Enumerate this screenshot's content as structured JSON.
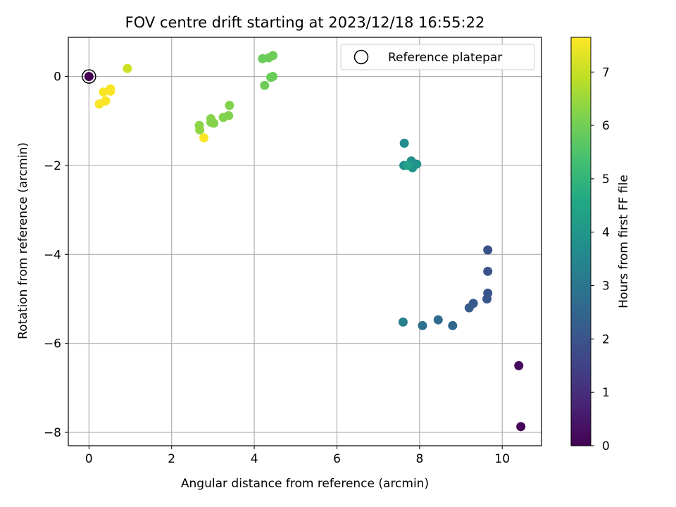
{
  "chart_data": {
    "type": "scatter",
    "title": "FOV centre drift starting at 2023/12/18 16:55:22",
    "xlabel": "Angular distance from reference (arcmin)",
    "ylabel": "Rotation from reference (arcmin)",
    "xlim": [
      -0.5,
      10.95
    ],
    "ylim": [
      -8.3,
      0.88
    ],
    "xticks": [
      0,
      2,
      4,
      6,
      8,
      10
    ],
    "yticks": [
      0,
      -2,
      -4,
      -6,
      -8
    ],
    "xtick_labels": [
      "0",
      "2",
      "4",
      "6",
      "8",
      "10"
    ],
    "ytick_labels": [
      "0",
      "−2",
      "−4",
      "−6",
      "−8"
    ],
    "grid": true,
    "legend": {
      "position": "top-right",
      "label": "Reference platepar"
    },
    "reference_point": {
      "x": 0,
      "y": 0
    },
    "colorbar": {
      "label": "Hours from first FF file",
      "range": [
        0,
        7.65
      ],
      "colormap": "viridis",
      "ticks": [
        0,
        1,
        2,
        3,
        4,
        5,
        6,
        7
      ],
      "tick_labels": [
        "0",
        "1",
        "2",
        "3",
        "4",
        "5",
        "6",
        "7"
      ]
    },
    "points": [
      {
        "x": 0.0,
        "y": 0.0,
        "c": 0.0
      },
      {
        "x": 10.45,
        "y": -7.87,
        "c": 0.05
      },
      {
        "x": 10.4,
        "y": -6.5,
        "c": 0.2
      },
      {
        "x": 9.65,
        "y": -3.9,
        "c": 1.9
      },
      {
        "x": 9.65,
        "y": -4.38,
        "c": 1.95
      },
      {
        "x": 9.65,
        "y": -4.87,
        "c": 2.0
      },
      {
        "x": 9.63,
        "y": -5.0,
        "c": 2.05
      },
      {
        "x": 9.3,
        "y": -5.1,
        "c": 2.15
      },
      {
        "x": 9.2,
        "y": -5.2,
        "c": 2.2
      },
      {
        "x": 8.8,
        "y": -5.6,
        "c": 2.55
      },
      {
        "x": 8.45,
        "y": -5.47,
        "c": 2.7
      },
      {
        "x": 8.07,
        "y": -5.6,
        "c": 2.85
      },
      {
        "x": 7.6,
        "y": -5.52,
        "c": 3.3
      },
      {
        "x": 7.63,
        "y": -1.5,
        "c": 3.7
      },
      {
        "x": 7.62,
        "y": -2.0,
        "c": 3.75
      },
      {
        "x": 7.8,
        "y": -1.9,
        "c": 3.8
      },
      {
        "x": 7.83,
        "y": -2.05,
        "c": 3.85
      },
      {
        "x": 7.93,
        "y": -1.97,
        "c": 3.9
      },
      {
        "x": 7.72,
        "y": -2.0,
        "c": 4.4
      },
      {
        "x": 4.2,
        "y": 0.4,
        "c": 5.9
      },
      {
        "x": 4.35,
        "y": 0.42,
        "c": 5.9
      },
      {
        "x": 4.45,
        "y": 0.47,
        "c": 5.95
      },
      {
        "x": 4.4,
        "y": -0.02,
        "c": 5.9
      },
      {
        "x": 4.45,
        "y": 0.0,
        "c": 5.9
      },
      {
        "x": 4.25,
        "y": -0.2,
        "c": 5.95
      },
      {
        "x": 3.4,
        "y": -0.65,
        "c": 6.2
      },
      {
        "x": 3.38,
        "y": -0.88,
        "c": 6.2
      },
      {
        "x": 3.25,
        "y": -0.92,
        "c": 6.2
      },
      {
        "x": 2.95,
        "y": -0.95,
        "c": 6.25
      },
      {
        "x": 2.95,
        "y": -1.03,
        "c": 6.25
      },
      {
        "x": 3.02,
        "y": -1.05,
        "c": 6.25
      },
      {
        "x": 2.67,
        "y": -1.1,
        "c": 6.3
      },
      {
        "x": 2.68,
        "y": -1.2,
        "c": 6.35
      },
      {
        "x": 2.78,
        "y": -1.38,
        "c": 7.6
      },
      {
        "x": 0.93,
        "y": 0.18,
        "c": 7.1
      },
      {
        "x": 0.35,
        "y": -0.35,
        "c": 7.6
      },
      {
        "x": 0.52,
        "y": -0.28,
        "c": 7.6
      },
      {
        "x": 0.52,
        "y": -0.33,
        "c": 7.6
      },
      {
        "x": 0.4,
        "y": -0.55,
        "c": 7.6
      },
      {
        "x": 0.25,
        "y": -0.62,
        "c": 7.6
      }
    ]
  }
}
